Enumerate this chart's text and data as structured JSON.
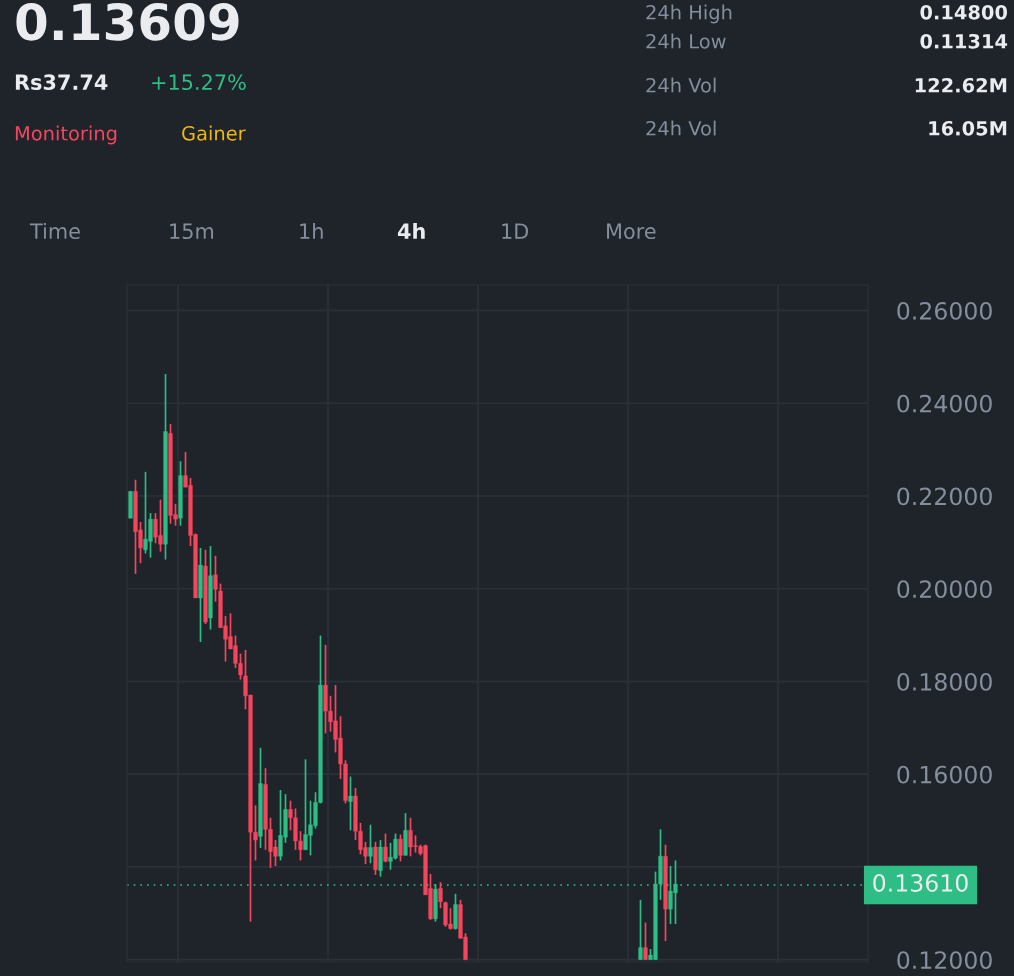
{
  "chart_data": {
    "type": "candlestick",
    "title": "0.13609",
    "annotations": [
      "Rs37.74",
      "+15.27%",
      "Monitoring",
      "Gainer",
      "24h High",
      "0.14800",
      "24h Low",
      "0.11314",
      "24h Vol",
      "122.62M",
      "24h Vol",
      "16.05M",
      "Time",
      "15m",
      "1h",
      "4h",
      "1D",
      "More"
    ],
    "categories": [
      null,
      null,
      null,
      null,
      null,
      null,
      null,
      null,
      null,
      null,
      null,
      null,
      null,
      null,
      null,
      null,
      null,
      null,
      null,
      null,
      null,
      null,
      null,
      null,
      null,
      null,
      null,
      null,
      null,
      null,
      null,
      null,
      null,
      null,
      null,
      null,
      null,
      null,
      null,
      null,
      null,
      null,
      null,
      null,
      null,
      null,
      null,
      null,
      null,
      null,
      null,
      null,
      null,
      null,
      null,
      null,
      null,
      null,
      null,
      null,
      null,
      null,
      null,
      null,
      null,
      null,
      null,
      null,
      null,
      null,
      null,
      null,
      null,
      null,
      null,
      null,
      null,
      null,
      null,
      null,
      null,
      null,
      null,
      null,
      null,
      null,
      null,
      null,
      null,
      null,
      null,
      null,
      null,
      null,
      null,
      null,
      null,
      null,
      null,
      null,
      null,
      null,
      null,
      null,
      null,
      null,
      null,
      null,
      null,
      null,
      null,
      null,
      null,
      null,
      null,
      null,
      null,
      null,
      null,
      null,
      null,
      null,
      null,
      null,
      null,
      null,
      null,
      null,
      null,
      null,
      null,
      null,
      null,
      null,
      null,
      null,
      null,
      null,
      null,
      null,
      null,
      null,
      null,
      null,
      null,
      null,
      null,
      null
    ],
    "ohlc": [
      [
        0.2152,
        0.221,
        0.2152,
        0.221
      ],
      [
        0.221,
        0.2235,
        0.2032,
        0.2123
      ],
      [
        0.2127,
        0.2144,
        0.2055,
        0.2088
      ],
      [
        0.2084,
        0.2252,
        0.2076,
        0.2107
      ],
      [
        0.2102,
        0.2163,
        0.2067,
        0.215
      ],
      [
        0.215,
        0.2163,
        0.2098,
        0.2111
      ],
      [
        0.2115,
        0.2192,
        0.208,
        0.2096
      ],
      [
        0.2096,
        0.2463,
        0.2063,
        0.2339
      ],
      [
        0.2335,
        0.2355,
        0.214,
        0.2158
      ],
      [
        0.216,
        0.2183,
        0.2136,
        0.215
      ],
      [
        0.2152,
        0.2275,
        0.2136,
        0.2244
      ],
      [
        0.2244,
        0.2295,
        0.2219,
        0.2219
      ],
      [
        0.2223,
        0.2239,
        0.2092,
        0.2115
      ],
      [
        0.2117,
        0.2119,
        0.198,
        0.198
      ],
      [
        0.198,
        0.2088,
        0.1885,
        0.2051
      ],
      [
        0.2049,
        0.2084,
        0.1924,
        0.1928
      ],
      [
        0.1937,
        0.2092,
        0.1912,
        0.2028
      ],
      [
        0.203,
        0.2071,
        0.1972,
        0.1999
      ],
      [
        0.1995,
        0.2011,
        0.1916,
        0.1916
      ],
      [
        0.192,
        0.1941,
        0.1843,
        0.1891
      ],
      [
        0.1897,
        0.1947,
        0.187,
        0.187
      ],
      [
        0.1877,
        0.1899,
        0.1829,
        0.1839
      ],
      [
        0.1839,
        0.186,
        0.1804,
        0.1814
      ],
      [
        0.1812,
        0.1868,
        0.174,
        0.1769
      ],
      [
        0.1771,
        0.1771,
        0.1282,
        0.1475
      ],
      [
        0.1475,
        0.1533,
        0.1414,
        0.1458
      ],
      [
        0.1466,
        0.1657,
        0.1441,
        0.158
      ],
      [
        0.1578,
        0.1613,
        0.1437,
        0.1481
      ],
      [
        0.1481,
        0.1506,
        0.1398,
        0.1433
      ],
      [
        0.1443,
        0.1458,
        0.1402,
        0.1423
      ],
      [
        0.1423,
        0.1566,
        0.1414,
        0.1468
      ],
      [
        0.1464,
        0.1557,
        0.1452,
        0.1524
      ],
      [
        0.1524,
        0.1543,
        0.1479,
        0.1506
      ],
      [
        0.1506,
        0.1526,
        0.1437,
        0.1456
      ],
      [
        0.1456,
        0.1477,
        0.1414,
        0.1437
      ],
      [
        0.1437,
        0.1632,
        0.1437,
        0.147
      ],
      [
        0.1468,
        0.1543,
        0.1425,
        0.1491
      ],
      [
        0.1489,
        0.1561,
        0.1483,
        0.1539
      ],
      [
        0.1539,
        0.1899,
        0.1537,
        0.1792
      ],
      [
        0.1792,
        0.1879,
        0.1688,
        0.1736
      ],
      [
        0.1736,
        0.1769,
        0.1692,
        0.1713
      ],
      [
        0.1715,
        0.1792,
        0.1647,
        0.1675
      ],
      [
        0.1678,
        0.1725,
        0.159,
        0.1622
      ],
      [
        0.1622,
        0.163,
        0.1537,
        0.1543
      ],
      [
        0.1541,
        0.1595,
        0.1479,
        0.1553
      ],
      [
        0.1553,
        0.157,
        0.1458,
        0.1477
      ],
      [
        0.1477,
        0.1495,
        0.1427,
        0.1437
      ],
      [
        0.1442,
        0.1454,
        0.1406,
        0.1423
      ],
      [
        0.1423,
        0.1491,
        0.1408,
        0.1442
      ],
      [
        0.1443,
        0.1454,
        0.1383,
        0.1394
      ],
      [
        0.1392,
        0.1458,
        0.1379,
        0.1443
      ],
      [
        0.1443,
        0.1472,
        0.141,
        0.1412
      ],
      [
        0.1412,
        0.1452,
        0.1394,
        0.1421
      ],
      [
        0.1419,
        0.1472,
        0.1416,
        0.146
      ],
      [
        0.146,
        0.147,
        0.1412,
        0.1425
      ],
      [
        0.1425,
        0.1516,
        0.1425,
        0.1479
      ],
      [
        0.1479,
        0.1506,
        0.1423,
        0.1443
      ],
      [
        0.1446,
        0.1468,
        0.1431,
        0.1444
      ],
      [
        0.1444,
        0.1448,
        0.1425,
        0.1429
      ],
      [
        0.1446,
        0.1448,
        0.134,
        0.134
      ],
      [
        0.1354,
        0.1385,
        0.1286,
        0.1288
      ],
      [
        0.1288,
        0.1363,
        0.1282,
        0.1352
      ],
      [
        0.1354,
        0.1367,
        0.1311,
        0.1325
      ],
      [
        0.1323,
        0.1325,
        0.1271,
        0.1275
      ],
      [
        0.1277,
        0.1311,
        0.1265,
        0.1267
      ],
      [
        0.1267,
        0.1342,
        0.1265,
        0.1319
      ],
      [
        0.1319,
        0.1329,
        0.1246,
        0.1246
      ],
      [
        0.1249,
        0.1257,
        0.12,
        0.12
      ],
      null,
      null,
      null,
      null,
      null,
      null,
      null,
      null,
      null,
      null,
      null,
      null,
      null,
      null,
      null,
      null,
      null,
      null,
      null,
      null,
      null,
      null,
      null,
      null,
      null,
      null,
      null,
      null,
      null,
      null,
      null,
      null,
      null,
      null,
      [
        0.12,
        0.1329,
        0.12,
        0.1226
      ],
      [
        0.1226,
        0.128,
        0.12,
        0.12
      ],
      [
        0.12,
        0.1223,
        0.12,
        0.121
      ],
      [
        0.12,
        0.139,
        0.12,
        0.1363
      ],
      [
        0.1363,
        0.1481,
        0.1329,
        0.1423
      ],
      [
        0.1423,
        0.1448,
        0.124,
        0.1309
      ],
      [
        0.1309,
        0.1402,
        0.1277,
        0.1348
      ],
      [
        0.1344,
        0.1414,
        0.1277,
        0.1363
      ],
      null,
      null,
      null,
      null,
      null,
      null,
      null,
      null,
      null,
      null,
      null,
      null,
      null,
      null,
      null,
      null,
      null,
      null,
      null,
      null,
      null,
      null,
      null,
      null,
      null,
      null,
      null,
      null,
      null,
      null,
      null,
      null,
      null,
      null,
      null,
      null,
      null,
      null
    ],
    "colors": [
      "#2ebd85",
      "#f6465d",
      "#f6465d",
      "#2ebd85",
      "#2ebd85",
      "#f6465d",
      "#f6465d",
      "#2ebd85",
      "#f6465d",
      "#f6465d",
      "#2ebd85",
      "#f6465d",
      "#f6465d",
      "#f6465d",
      "#2ebd85",
      "#f6465d",
      "#2ebd85",
      "#f6465d",
      "#f6465d",
      "#f6465d",
      "#f6465d",
      "#f6465d",
      "#f6465d",
      "#f6465d",
      "#f6465d",
      "#f6465d",
      "#2ebd85",
      "#f6465d",
      "#f6465d",
      "#f6465d",
      "#2ebd85",
      "#2ebd85",
      "#f6465d",
      "#f6465d",
      "#f6465d",
      "#2ebd85",
      "#2ebd85",
      "#2ebd85",
      "#2ebd85",
      "#f6465d",
      "#f6465d",
      "#f6465d",
      "#f6465d",
      "#f6465d",
      "#2ebd85",
      "#f6465d",
      "#f6465d",
      "#f6465d",
      "#2ebd85",
      "#f6465d",
      "#2ebd85",
      "#f6465d",
      "#2ebd85",
      "#2ebd85",
      "#f6465d",
      "#2ebd85",
      "#f6465d",
      "#f6465d",
      "#f6465d",
      "#f6465d",
      "#f6465d",
      "#2ebd85",
      "#f6465d",
      "#f6465d",
      "#f6465d",
      "#2ebd85",
      "#f6465d",
      "#f6465d",
      null,
      null,
      null,
      null,
      null,
      null,
      null,
      null,
      null,
      null,
      null,
      null,
      null,
      null,
      null,
      null,
      null,
      null,
      null,
      null,
      null,
      null,
      null,
      null,
      null,
      null,
      null,
      null,
      null,
      null,
      null,
      null,
      null,
      null,
      "#2ebd85",
      "#f6465d",
      "#2ebd85",
      "#2ebd85",
      "#2ebd85",
      "#f6465d",
      "#2ebd85",
      "#2ebd85",
      null,
      null,
      null,
      null,
      null,
      null,
      null,
      null,
      null,
      null,
      null,
      null,
      null,
      null,
      null,
      null,
      null,
      null,
      null,
      null,
      null,
      null,
      null,
      null,
      null,
      null,
      null,
      null,
      null,
      null,
      null,
      null,
      null,
      null,
      null,
      null,
      null,
      null
    ],
    "ylim": [
      0.1195,
      0.2655
    ],
    "yticks": [
      {
        "value": 0.12,
        "label": "0.12000"
      },
      {
        "value": 0.14,
        "label": null
      },
      {
        "value": 0.16,
        "label": "0.16000"
      },
      {
        "value": 0.18,
        "label": "0.18000"
      },
      {
        "value": 0.2,
        "label": "0.20000"
      },
      {
        "value": 0.22,
        "label": "0.22000"
      },
      {
        "value": 0.24,
        "label": "0.24000"
      },
      {
        "value": 0.26,
        "label": "0.26000"
      }
    ],
    "ref_lines": [
      {
        "axis": "y",
        "value": 0.1361,
        "label": "0.13610",
        "color": "#2ebd85",
        "line_style": "dotted"
      }
    ],
    "grid": true,
    "tick_labels": "y"
  }
}
